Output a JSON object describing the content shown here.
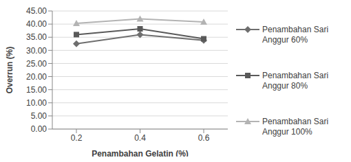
{
  "chart_data": {
    "type": "line",
    "x_label": "Penambahan Gelatin (%)",
    "y_label": "Overrun (%)",
    "categories": [
      "0.2",
      "0.4",
      "0.6"
    ],
    "series": [
      {
        "name": "Penambahan Sari Anggur 60%",
        "color": "#6e6e6e",
        "marker": "diamond",
        "values": [
          32.5,
          36.0,
          33.8
        ]
      },
      {
        "name": "Penambahan Sari Anggur 80%",
        "color": "#595959",
        "marker": "square",
        "values": [
          36.0,
          38.2,
          34.4
        ]
      },
      {
        "name": "Penambahan Sari Anggur 100%",
        "color": "#b3b3b3",
        "marker": "triangle",
        "values": [
          40.3,
          42.0,
          40.8
        ]
      }
    ],
    "ylim": [
      0,
      45
    ],
    "yticks": [
      {
        "value": 0,
        "label": "0.00"
      },
      {
        "value": 5,
        "label": "5.00"
      },
      {
        "value": 10,
        "label": "10.00"
      },
      {
        "value": 15,
        "label": "15.00"
      },
      {
        "value": 20,
        "label": "20.00"
      },
      {
        "value": 25,
        "label": "25.00"
      },
      {
        "value": 30,
        "label": "30.00"
      },
      {
        "value": 35,
        "label": "35.00"
      },
      {
        "value": 40,
        "label": "40.00"
      },
      {
        "value": 45,
        "label": "45.00"
      }
    ],
    "grid": true,
    "legend": "right"
  }
}
